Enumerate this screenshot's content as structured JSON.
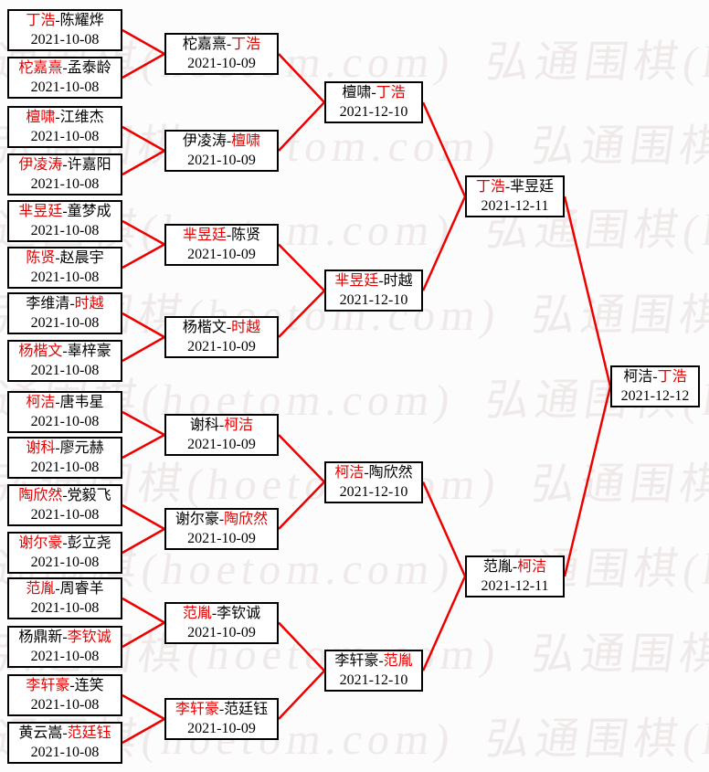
{
  "colors": {
    "winner_red": "#e60000",
    "line_red": "#ee0000",
    "box_border": "#000000",
    "background": "#fcfcfc",
    "watermark": "#efe9e9"
  },
  "watermark": {
    "text": "弘通围棋(hoetom.com)"
  },
  "bracket": {
    "separator": "-",
    "rounds": [
      {
        "name": "round-of-16",
        "matches": [
          {
            "p1": "丁浩",
            "p2": "陈耀烨",
            "winner": 1,
            "date": "2021-10-08"
          },
          {
            "p1": "柁嘉熹",
            "p2": "孟泰龄",
            "winner": 1,
            "date": "2021-10-08"
          },
          {
            "p1": "檀啸",
            "p2": "江维杰",
            "winner": 1,
            "date": "2021-10-08"
          },
          {
            "p1": "伊凌涛",
            "p2": "许嘉阳",
            "winner": 1,
            "date": "2021-10-08"
          },
          {
            "p1": "芈昱廷",
            "p2": "童梦成",
            "winner": 1,
            "date": "2021-10-08"
          },
          {
            "p1": "陈贤",
            "p2": "赵晨宇",
            "winner": 1,
            "date": "2021-10-08"
          },
          {
            "p1": "李维清",
            "p2": "时越",
            "winner": 2,
            "date": "2021-10-08"
          },
          {
            "p1": "杨楷文",
            "p2": "辜梓豪",
            "winner": 1,
            "date": "2021-10-08"
          },
          {
            "p1": "柯洁",
            "p2": "唐韦星",
            "winner": 1,
            "date": "2021-10-08"
          },
          {
            "p1": "谢科",
            "p2": "廖元赫",
            "winner": 1,
            "date": "2021-10-08"
          },
          {
            "p1": "陶欣然",
            "p2": "党毅飞",
            "winner": 1,
            "date": "2021-10-08"
          },
          {
            "p1": "谢尔豪",
            "p2": "彭立尧",
            "winner": 1,
            "date": "2021-10-08"
          },
          {
            "p1": "范胤",
            "p2": "周睿羊",
            "winner": 1,
            "date": "2021-10-08"
          },
          {
            "p1": "杨鼎新",
            "p2": "李钦诚",
            "winner": 2,
            "date": "2021-10-08"
          },
          {
            "p1": "李轩豪",
            "p2": "连笑",
            "winner": 1,
            "date": "2021-10-08"
          },
          {
            "p1": "黄云嵩",
            "p2": "范廷钰",
            "winner": 2,
            "date": "2021-10-08"
          }
        ]
      },
      {
        "name": "round-of-8",
        "matches": [
          {
            "p1": "柁嘉熹",
            "p2": "丁浩",
            "winner": 2,
            "date": "2021-10-09"
          },
          {
            "p1": "伊凌涛",
            "p2": "檀啸",
            "winner": 2,
            "date": "2021-10-09"
          },
          {
            "p1": "芈昱廷",
            "p2": "陈贤",
            "winner": 1,
            "date": "2021-10-09"
          },
          {
            "p1": "杨楷文",
            "p2": "时越",
            "winner": 2,
            "date": "2021-10-09"
          },
          {
            "p1": "谢科",
            "p2": "柯洁",
            "winner": 2,
            "date": "2021-10-09"
          },
          {
            "p1": "谢尔豪",
            "p2": "陶欣然",
            "winner": 2,
            "date": "2021-10-09"
          },
          {
            "p1": "范胤",
            "p2": "李钦诚",
            "winner": 1,
            "date": "2021-10-09"
          },
          {
            "p1": "李轩豪",
            "p2": "范廷钰",
            "winner": 1,
            "date": "2021-10-09"
          }
        ]
      },
      {
        "name": "quarterfinals",
        "matches": [
          {
            "p1": "檀啸",
            "p2": "丁浩",
            "winner": 2,
            "date": "2021-12-10"
          },
          {
            "p1": "芈昱廷",
            "p2": "时越",
            "winner": 1,
            "date": "2021-12-10"
          },
          {
            "p1": "柯洁",
            "p2": "陶欣然",
            "winner": 1,
            "date": "2021-12-10"
          },
          {
            "p1": "李轩豪",
            "p2": "范胤",
            "winner": 2,
            "date": "2021-12-10"
          }
        ]
      },
      {
        "name": "semifinals",
        "matches": [
          {
            "p1": "丁浩",
            "p2": "芈昱廷",
            "winner": 1,
            "date": "2021-12-11"
          },
          {
            "p1": "范胤",
            "p2": "柯洁",
            "winner": 2,
            "date": "2021-12-11"
          }
        ]
      },
      {
        "name": "final",
        "matches": [
          {
            "p1": "柯洁",
            "p2": "丁浩",
            "winner": 2,
            "date": "2021-12-12"
          }
        ]
      }
    ]
  }
}
